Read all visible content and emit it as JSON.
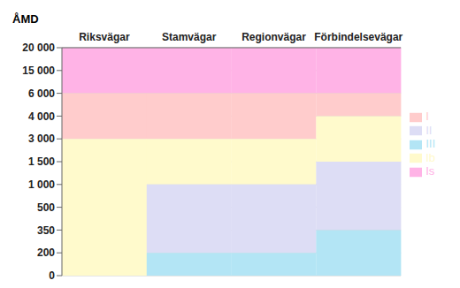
{
  "chart_data": {
    "type": "bar",
    "y_label": "ÅMD",
    "categories": [
      "Riksvägar",
      "Stamvägar",
      "Regionvägar",
      "Förbindelsevägar"
    ],
    "series": [
      {
        "name": "Is",
        "color": "#FFB3E6",
        "values": [
          [
            6000,
            20000
          ],
          [
            6000,
            20000
          ],
          [
            6000,
            20000
          ],
          [
            6000,
            20000
          ]
        ]
      },
      {
        "name": "I",
        "color": "#FFCCCC",
        "values": [
          [
            3000,
            6000
          ],
          [
            3000,
            6000
          ],
          [
            3000,
            6000
          ],
          [
            4000,
            6000
          ]
        ]
      },
      {
        "name": "Ib",
        "color": "#FFFACC",
        "values": [
          [
            0,
            3000
          ],
          [
            1000,
            3000
          ],
          [
            1000,
            3000
          ],
          [
            1500,
            4000
          ]
        ]
      },
      {
        "name": "II",
        "color": "#DDDDF5",
        "values": [
          null,
          [
            200,
            1000
          ],
          [
            200,
            1000
          ],
          [
            350,
            1500
          ]
        ]
      },
      {
        "name": "III",
        "color": "#B3E5F5",
        "values": [
          null,
          [
            0,
            200
          ],
          [
            0,
            200
          ],
          [
            0,
            350
          ]
        ]
      }
    ],
    "ylim": [
      0,
      20000
    ],
    "yticks": [
      0,
      200,
      350,
      500,
      {
        "value": 1000,
        "label": "1 000"
      },
      {
        "value": 1500,
        "label": "1 500"
      },
      {
        "value": 3000,
        "label": "3 000"
      },
      {
        "value": 4000,
        "label": "4 000"
      },
      {
        "value": 6000,
        "label": "6 000"
      },
      {
        "value": 15000,
        "label": "15 000"
      },
      {
        "value": 20000,
        "label": "20 000"
      }
    ],
    "grid": true,
    "legend": "right"
  }
}
